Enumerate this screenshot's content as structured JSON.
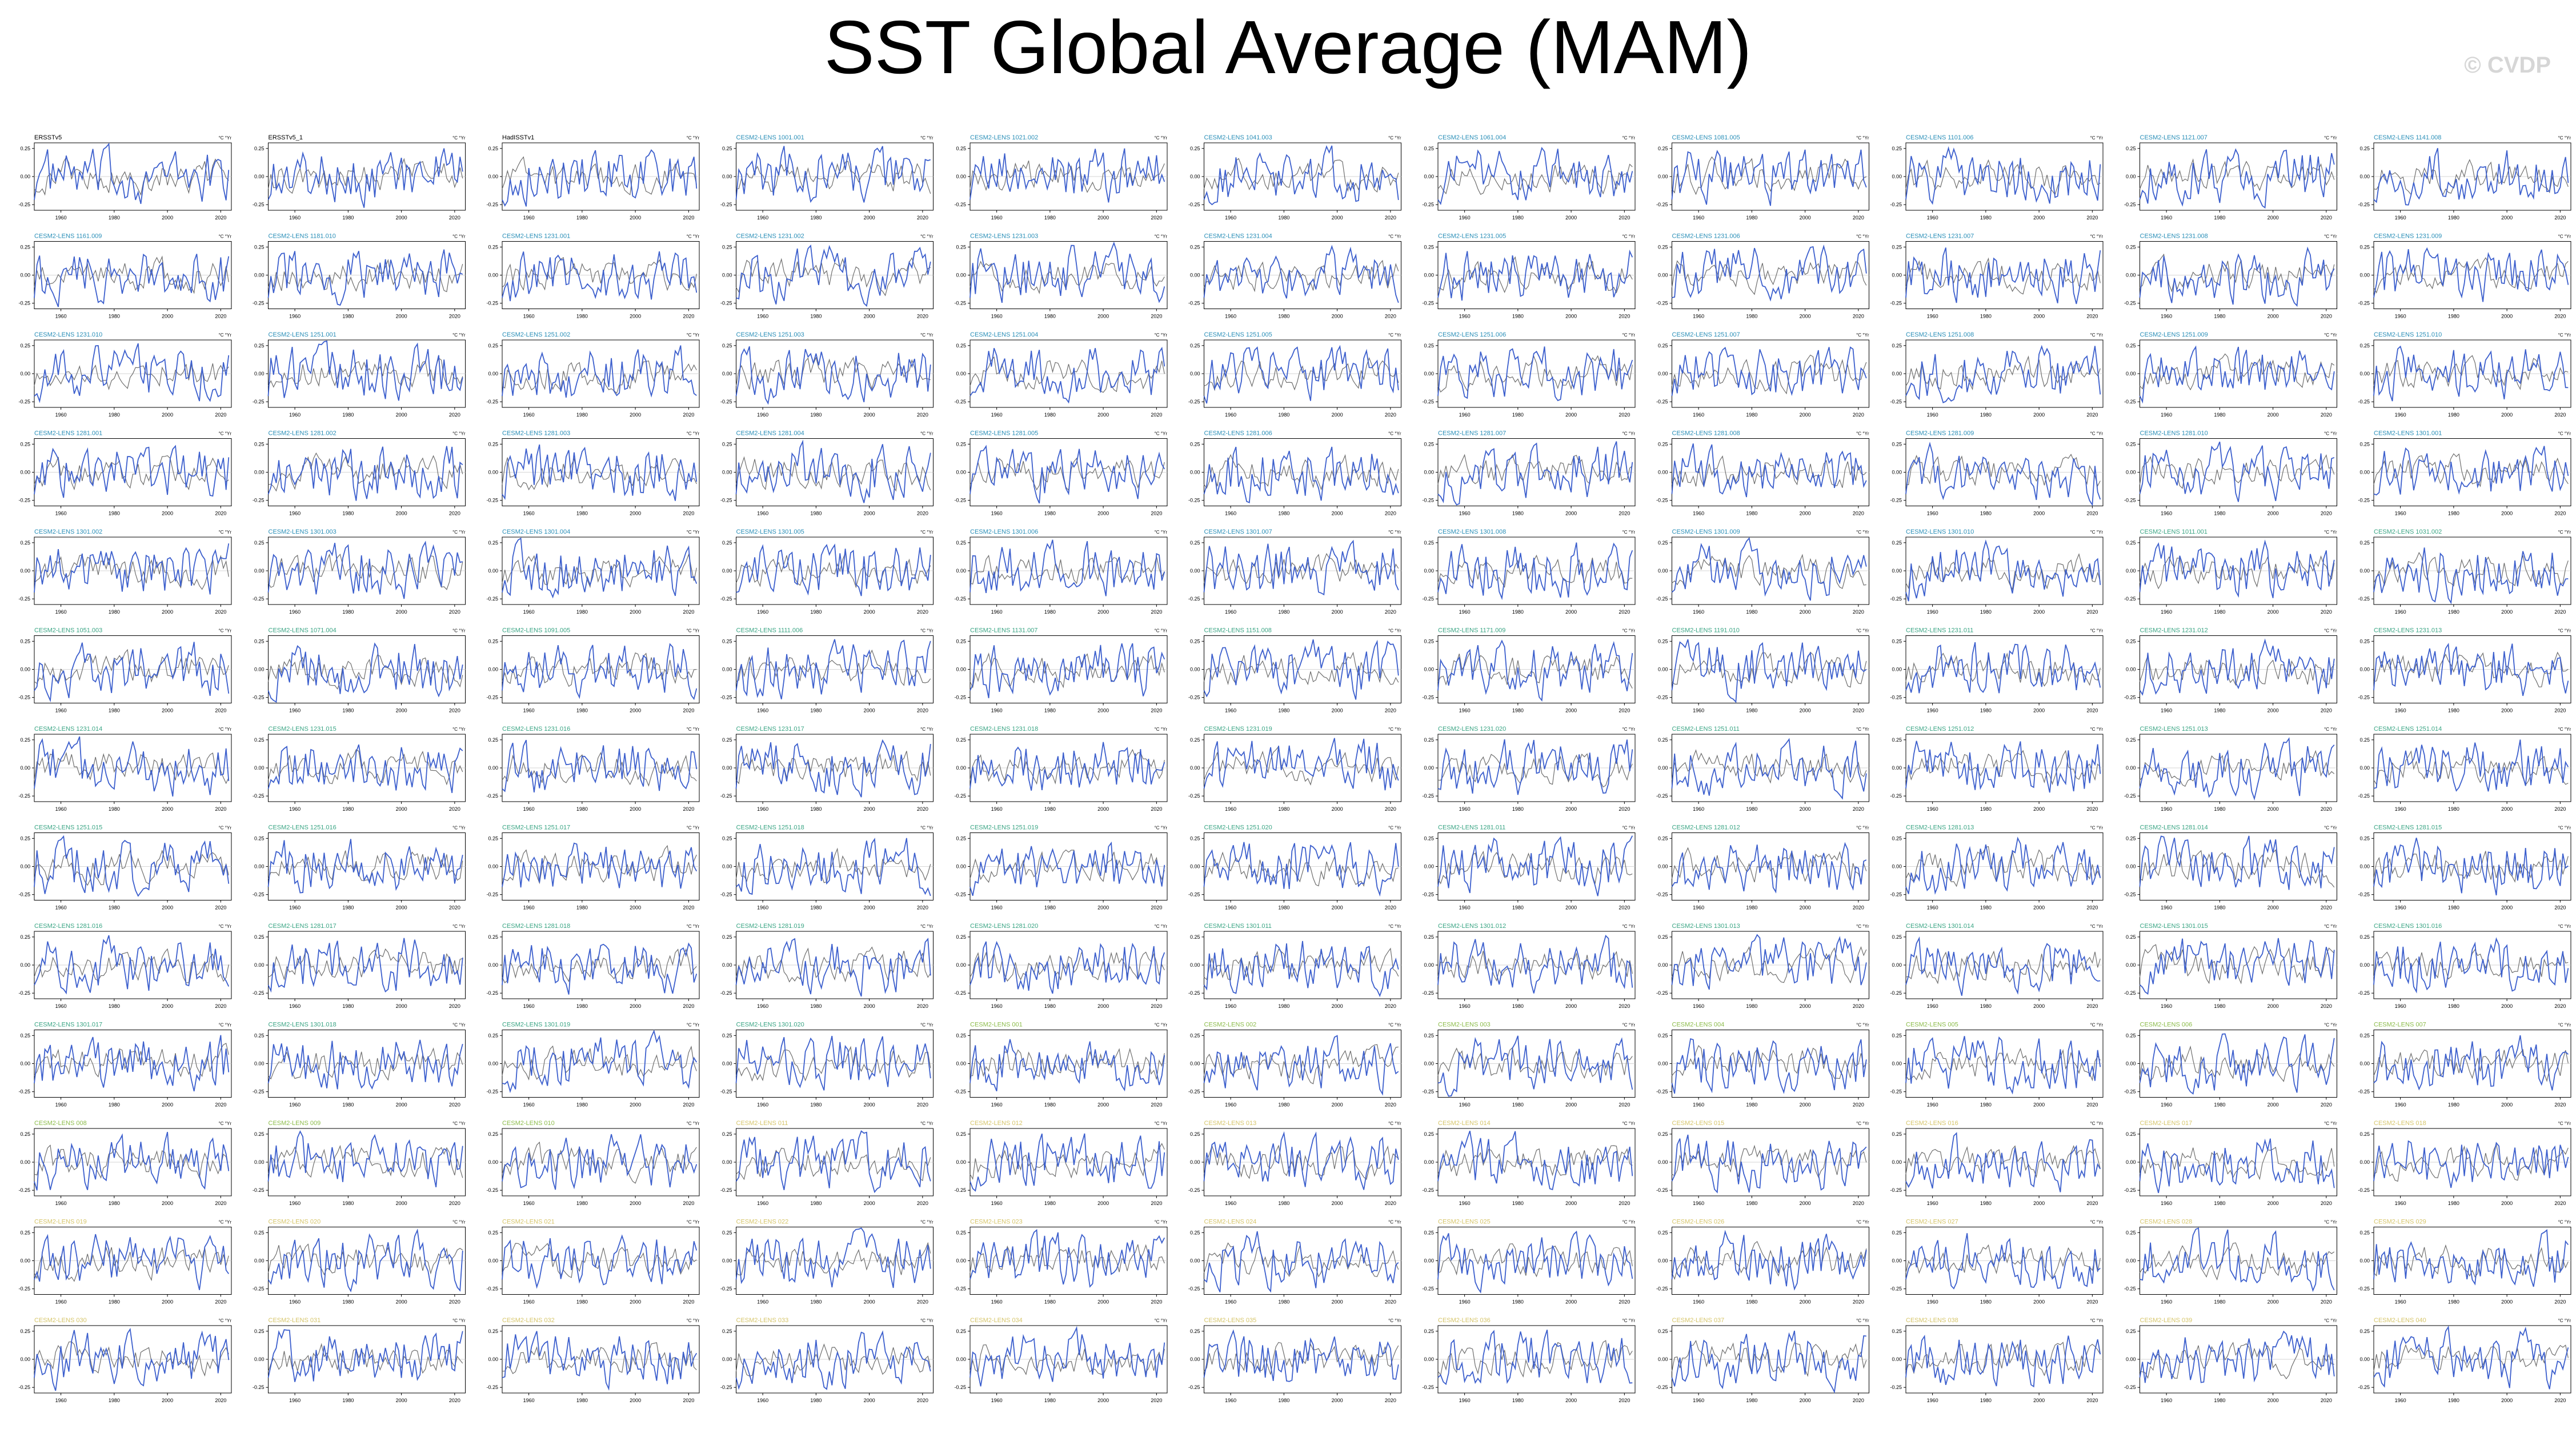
{
  "title": "SST Global Average (MAM)",
  "watermark": "© CVDP",
  "colors": {
    "series": "#3c5fcd",
    "ensemble_mean": "#6e6e6e",
    "label_obs": "#000000",
    "label_group_a": "#2a8fb8",
    "label_group_b": "#3aa584",
    "label_group_c": "#8cbc4a",
    "label_group_d": "#d6c56a"
  },
  "chart_data": {
    "type": "line",
    "layout": "small-multiples grid, 11 columns x 13 rows",
    "units": "°C",
    "xticks": [
      1960,
      1980,
      2000,
      2020
    ],
    "xlim": [
      1950,
      2024
    ],
    "ylim": [
      -0.3,
      0.3
    ],
    "yticks": [
      0.25,
      0.0,
      -0.25
    ],
    "panel_labels": [
      "ERSSTv5",
      "ERSSTv5_1",
      "HadISSTv1",
      "CESM2-LENS 1001.001",
      "CESM2-LENS 1021.002",
      "CESM2-LENS 1041.003",
      "CESM2-LENS 1061.004",
      "CESM2-LENS 1081.005",
      "CESM2-LENS 1101.006",
      "CESM2-LENS 1121.007",
      "CESM2-LENS 1141.008",
      "CESM2-LENS 1161.009",
      "CESM2-LENS 1181.010",
      "CESM2-LENS 1231.001",
      "CESM2-LENS 1231.002",
      "CESM2-LENS 1231.003",
      "CESM2-LENS 1231.004",
      "CESM2-LENS 1231.005",
      "CESM2-LENS 1231.006",
      "CESM2-LENS 1231.007",
      "CESM2-LENS 1231.008",
      "CESM2-LENS 1231.009",
      "CESM2-LENS 1231.010",
      "CESM2-LENS 1251.001",
      "CESM2-LENS 1251.002",
      "CESM2-LENS 1251.003",
      "CESM2-LENS 1251.004",
      "CESM2-LENS 1251.005",
      "CESM2-LENS 1251.006",
      "CESM2-LENS 1251.007",
      "CESM2-LENS 1251.008",
      "CESM2-LENS 1251.009",
      "CESM2-LENS 1251.010",
      "CESM2-LENS 1281.001",
      "CESM2-LENS 1281.002",
      "CESM2-LENS 1281.003",
      "CESM2-LENS 1281.004",
      "CESM2-LENS 1281.005",
      "CESM2-LENS 1281.006",
      "CESM2-LENS 1281.007",
      "CESM2-LENS 1281.008",
      "CESM2-LENS 1281.009",
      "CESM2-LENS 1281.010",
      "CESM2-LENS 1301.001",
      "CESM2-LENS 1301.002",
      "CESM2-LENS 1301.003",
      "CESM2-LENS 1301.004",
      "CESM2-LENS 1301.005",
      "CESM2-LENS 1301.006",
      "CESM2-LENS 1301.007",
      "CESM2-LENS 1301.008",
      "CESM2-LENS 1301.009",
      "CESM2-LENS 1301.010",
      "CESM2-LENS 1011.001",
      "CESM2-LENS 1031.002",
      "CESM2-LENS 1051.003",
      "CESM2-LENS 1071.004",
      "CESM2-LENS 1091.005",
      "CESM2-LENS 1111.006",
      "CESM2-LENS 1131.007",
      "CESM2-LENS 1151.008",
      "CESM2-LENS 1171.009",
      "CESM2-LENS 1191.010",
      "CESM2-LENS 1231.011",
      "CESM2-LENS 1231.012",
      "CESM2-LENS 1231.013",
      "CESM2-LENS 1231.014",
      "CESM2-LENS 1231.015",
      "CESM2-LENS 1231.016",
      "CESM2-LENS 1231.017",
      "CESM2-LENS 1231.018",
      "CESM2-LENS 1231.019",
      "CESM2-LENS 1231.020",
      "CESM2-LENS 1251.011",
      "CESM2-LENS 1251.012",
      "CESM2-LENS 1251.013",
      "CESM2-LENS 1251.014",
      "CESM2-LENS 1251.015",
      "CESM2-LENS 1251.016",
      "CESM2-LENS 1251.017",
      "CESM2-LENS 1251.018",
      "CESM2-LENS 1251.019",
      "CESM2-LENS 1251.020",
      "CESM2-LENS 1281.011",
      "CESM2-LENS 1281.012",
      "CESM2-LENS 1281.013",
      "CESM2-LENS 1281.014",
      "CESM2-LENS 1281.015",
      "CESM2-LENS 1281.016",
      "CESM2-LENS 1281.017",
      "CESM2-LENS 1281.018",
      "CESM2-LENS 1281.019",
      "CESM2-LENS 1281.020",
      "CESM2-LENS 1301.011",
      "CESM2-LENS 1301.012",
      "CESM2-LENS 1301.013",
      "CESM2-LENS 1301.014",
      "CESM2-LENS 1301.015",
      "CESM2-LENS 1301.016",
      "CESM2-LENS 1301.017",
      "CESM2-LENS 1301.018",
      "CESM2-LENS 1301.019",
      "CESM2-LENS 1301.020",
      "CESM2-LENS 001",
      "CESM2-LENS 002",
      "CESM2-LENS 003",
      "CESM2-LENS 004",
      "CESM2-LENS 005",
      "CESM2-LENS 006",
      "CESM2-LENS 007",
      "CESM2-LENS 008",
      "CESM2-LENS 009",
      "CESM2-LENS 010",
      "CESM2-LENS 011",
      "CESM2-LENS 012",
      "CESM2-LENS 013",
      "CESM2-LENS 014",
      "CESM2-LENS 015",
      "CESM2-LENS 016",
      "CESM2-LENS 017",
      "CESM2-LENS 018",
      "CESM2-LENS 019",
      "CESM2-LENS 020",
      "CESM2-LENS 021",
      "CESM2-LENS 022",
      "CESM2-LENS 023",
      "CESM2-LENS 024",
      "CESM2-LENS 025",
      "CESM2-LENS 026",
      "CESM2-LENS 027",
      "CESM2-LENS 028",
      "CESM2-LENS 029",
      "CESM2-LENS 030",
      "CESM2-LENS 031",
      "CESM2-LENS 032",
      "CESM2-LENS 033",
      "CESM2-LENS 034",
      "CESM2-LENS 035",
      "CESM2-LENS 036",
      "CESM2-LENS 037",
      "CESM2-LENS 038",
      "CESM2-LENS 039",
      "CESM2-LENS 040"
    ],
    "panel_units": "°C °Yr",
    "series": [
      {
        "role": "member",
        "style": "solid blue line"
      },
      {
        "role": "ensemble_mean",
        "style": "thin gray line"
      }
    ]
  }
}
